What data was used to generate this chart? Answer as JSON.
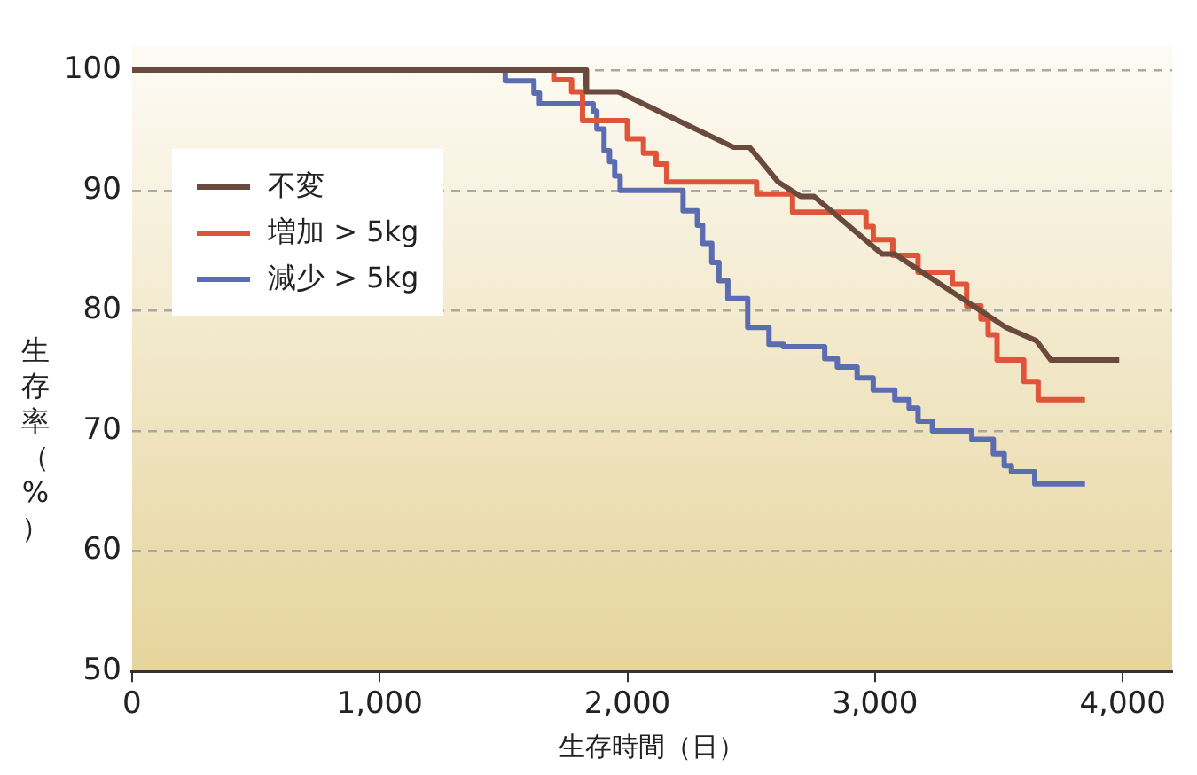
{
  "chart_data": {
    "type": "step",
    "xlabel": "生存時間（日）",
    "ylabel": "生存率（%）",
    "xlim": [
      0,
      4200
    ],
    "xticks": [
      {
        "value": 0,
        "label": "0"
      },
      {
        "value": 1000,
        "label": "1,000"
      },
      {
        "value": 2000,
        "label": "2,000"
      },
      {
        "value": 3000,
        "label": "3,000"
      },
      {
        "value": 4000,
        "label": "4,000"
      }
    ],
    "ylim": [
      50,
      102
    ],
    "yticks": [
      50,
      60,
      70,
      80,
      90,
      100
    ],
    "grid": "y",
    "legend": "top left",
    "marker": "none",
    "series": [
      {
        "name": "不変",
        "type": "line",
        "color": "#6b4a3e",
        "x": [
          0,
          1830,
          1835,
          1964,
          2428,
          2493,
          2609,
          2700,
          2754,
          3029,
          3080,
          3529,
          3652,
          3710,
          3986
        ],
        "values": [
          100,
          100,
          98.2,
          98.2,
          93.6,
          93.6,
          90.7,
          89.5,
          89.5,
          84.7,
          84.7,
          78.6,
          77.5,
          75.9,
          75.9
        ]
      },
      {
        "name": "増加 > 5kg",
        "type": "step",
        "color": "#e0553a",
        "x": [
          0,
          1703,
          1775,
          1819,
          2000,
          2065,
          2116,
          2159,
          2522,
          2667,
          2964,
          2993,
          3072,
          3174,
          3312,
          3370,
          3428,
          3457,
          3493,
          3601,
          3659,
          3848
        ],
        "values": [
          100,
          99.2,
          98.2,
          95.8,
          94.3,
          93.1,
          92.2,
          90.7,
          89.7,
          88.2,
          87.0,
          85.9,
          84.6,
          83.2,
          82.2,
          80.4,
          79.3,
          78.0,
          75.9,
          74.1,
          72.6,
          72.6
        ]
      },
      {
        "name": "減少 > 5kg",
        "type": "step",
        "color": "#5b6db0",
        "x": [
          0,
          1507,
          1623,
          1645,
          1862,
          1877,
          1906,
          1928,
          1949,
          1971,
          2225,
          2283,
          2304,
          2341,
          2370,
          2406,
          2486,
          2572,
          2630,
          2797,
          2848,
          2928,
          2993,
          3080,
          3138,
          3174,
          3232,
          3391,
          3478,
          3522,
          3551,
          3645,
          3848
        ],
        "values": [
          100,
          99.1,
          98.1,
          97.2,
          96.6,
          95.1,
          93.3,
          92.4,
          91.2,
          90.0,
          88.3,
          87.1,
          85.6,
          84.0,
          82.5,
          81.0,
          78.6,
          77.2,
          77.0,
          76.0,
          75.3,
          74.4,
          73.4,
          72.6,
          71.9,
          70.8,
          70.0,
          69.3,
          68.1,
          67.1,
          66.6,
          65.6,
          65.6
        ]
      }
    ]
  }
}
